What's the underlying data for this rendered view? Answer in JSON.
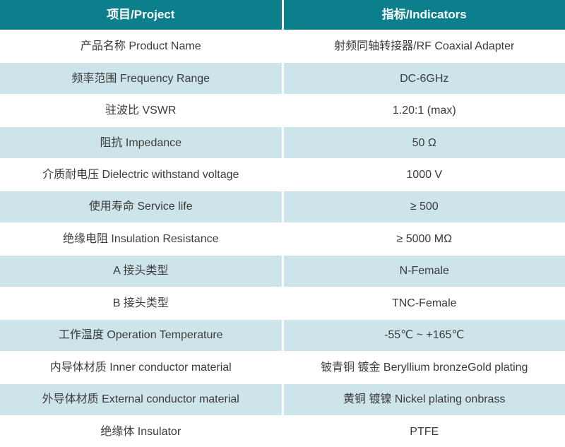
{
  "table": {
    "header": {
      "project": "项目/Project",
      "indicators": "指标/Indicators"
    },
    "rows": [
      {
        "project": "产品名称 Product Name",
        "indicator": "射频同轴转接器/RF Coaxial Adapter"
      },
      {
        "project": "频率范围 Frequency Range",
        "indicator": "DC-6GHz"
      },
      {
        "project": "驻波比 VSWR",
        "indicator": "1.20:1 (max)"
      },
      {
        "project": "阻抗 Impedance",
        "indicator": "50 Ω"
      },
      {
        "project": "介质耐电压 Dielectric withstand voltage",
        "indicator": "1000 V"
      },
      {
        "project": "使用寿命 Service life",
        "indicator": "≥ 500"
      },
      {
        "project": "绝缘电阻 Insulation Resistance",
        "indicator": "≥ 5000 MΩ"
      },
      {
        "project": "A 接头类型",
        "indicator": "N-Female"
      },
      {
        "project": "B 接头类型",
        "indicator": "TNC-Female"
      },
      {
        "project": "工作温度 Operation Temperature",
        "indicator": "-55℃ ~ +165℃"
      },
      {
        "project": "内导体材质 Inner conductor material",
        "indicator": "铍青铜 镀金 Beryllium bronzeGold plating"
      },
      {
        "project": "外导体材质 External conductor material",
        "indicator": "黄铜 镀镍 Nickel plating onbrass"
      },
      {
        "project": "绝缘体 Insulator",
        "indicator": "PTFE"
      }
    ]
  },
  "colors": {
    "header_bg": "#0c7f8d",
    "header_text": "#ffffff",
    "row_bg": "#ffffff",
    "row_alt_bg": "#cde5ea",
    "body_text": "#3b3b3b",
    "divider": "#ffffff"
  }
}
